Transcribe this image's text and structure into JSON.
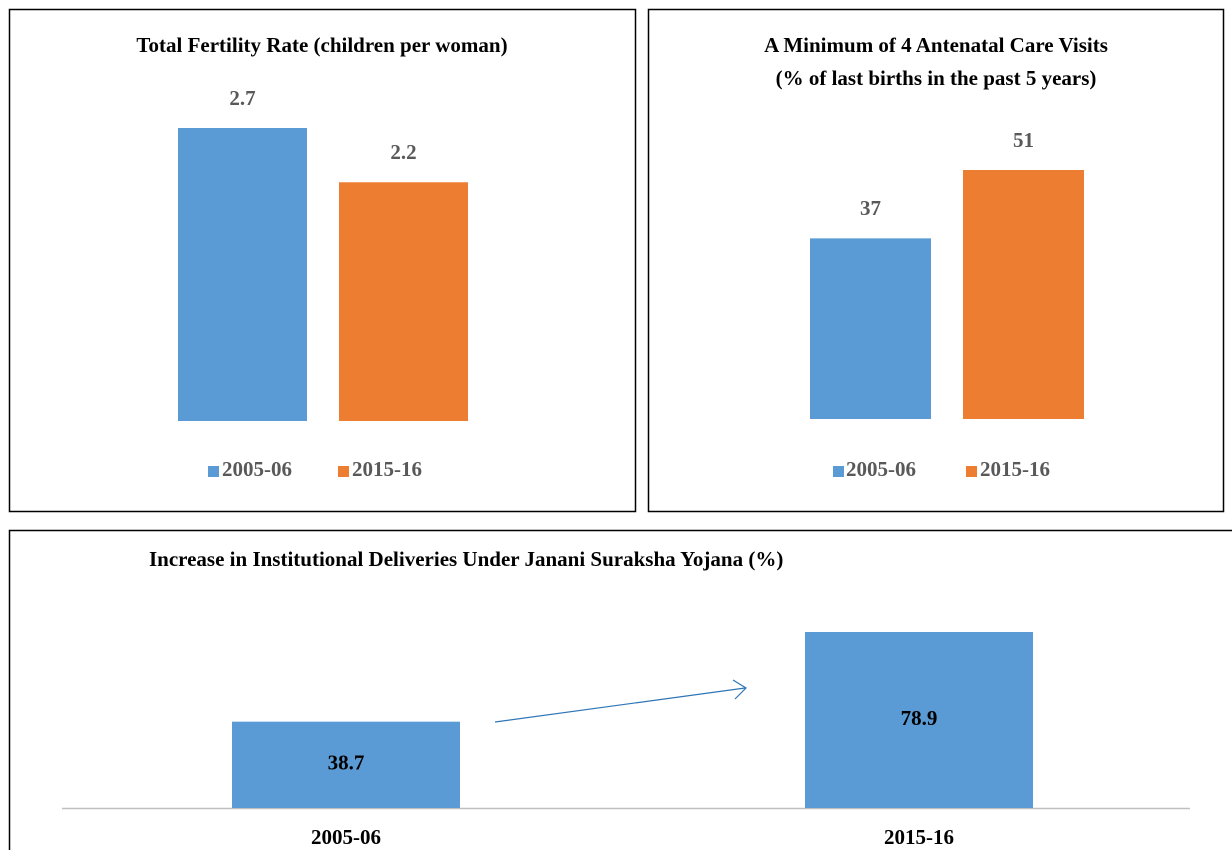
{
  "chart_data": [
    {
      "type": "bar",
      "title": "Total Fertility Rate (children per woman)",
      "categories": [
        null
      ],
      "series": [
        {
          "name": "2005-06",
          "color": "#5b9bd5",
          "values": [
            2.7
          ]
        },
        {
          "name": "2015-16",
          "color": "#ed7d31",
          "values": [
            2.2
          ]
        }
      ]
    },
    {
      "type": "bar",
      "title": "A Minimum of 4 Antenatal Care Visits",
      "subtitle": "(% of last births in the past 5 years)",
      "categories": [
        null
      ],
      "series": [
        {
          "name": "2005-06",
          "color": "#5b9bd5",
          "values": [
            37
          ]
        },
        {
          "name": "2015-16",
          "color": "#ed7d31",
          "values": [
            51
          ]
        }
      ]
    },
    {
      "type": "bar",
      "title": "Increase in Institutional Deliveries Under Janani Suraksha Yojana (%)",
      "categories": [
        "2005-06",
        "2015-16"
      ],
      "values": [
        38.7,
        78.9
      ],
      "color": "#5b9bd5"
    }
  ]
}
